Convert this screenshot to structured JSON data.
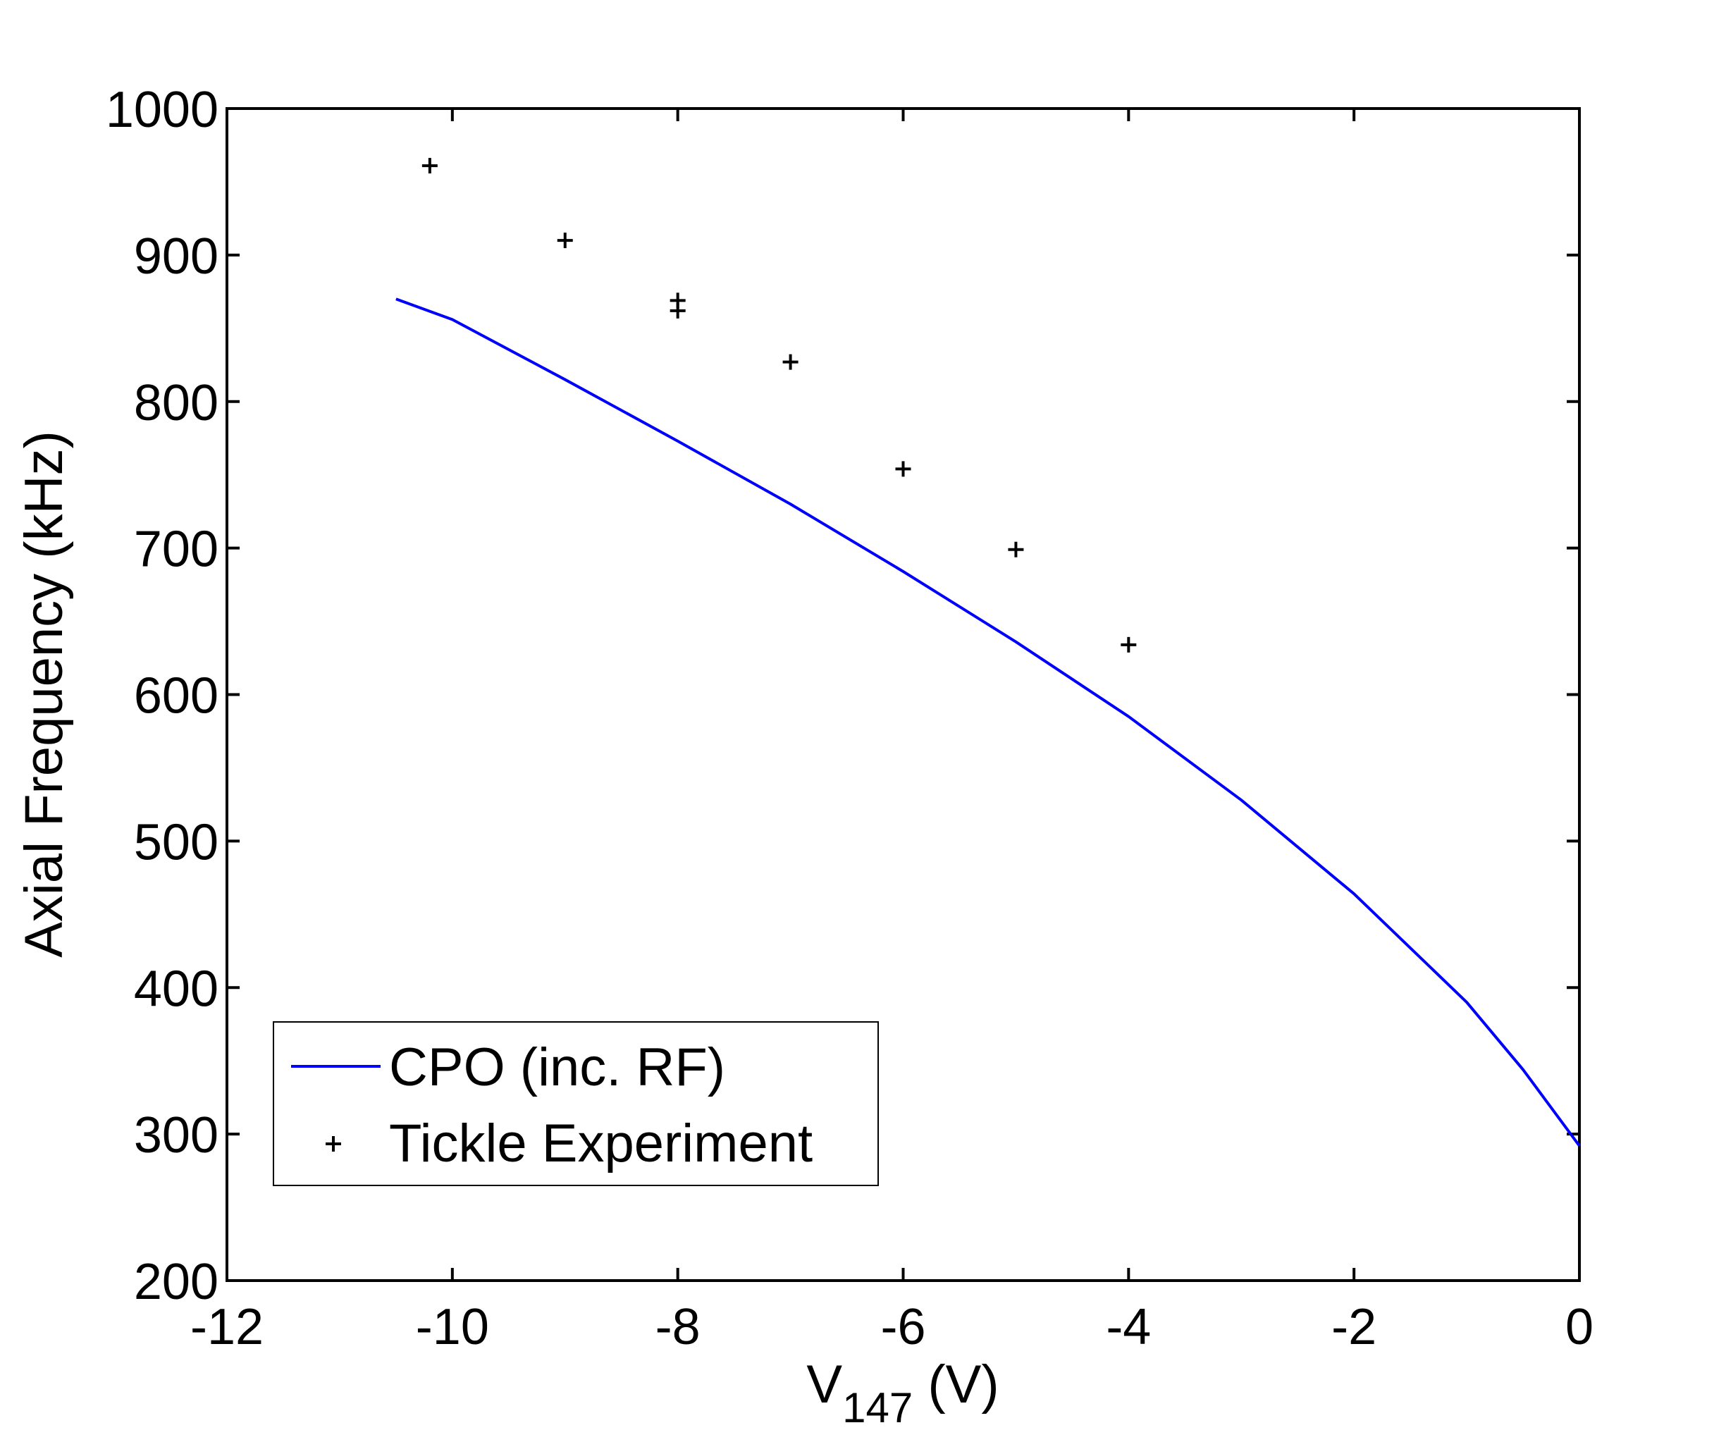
{
  "chart_data": {
    "type": "line",
    "xlabel": "V",
    "xlabel_sub": "147",
    "xlabel_unit": "(V)",
    "ylabel": "Axial Frequency (kHz)",
    "xlim": [
      -12,
      0
    ],
    "ylim": [
      200,
      1000
    ],
    "xticks": [
      -12,
      -10,
      -8,
      -6,
      -4,
      -2,
      0
    ],
    "yticks": [
      200,
      300,
      400,
      500,
      600,
      700,
      800,
      900,
      1000
    ],
    "legend_position": "bottom-left",
    "series": [
      {
        "name": "CPO (inc. RF)",
        "kind": "line",
        "color": "#0000ff",
        "x": [
          -10.5,
          -10,
          -9,
          -8,
          -7,
          -6,
          -5,
          -4,
          -3,
          -2,
          -1,
          -0.5,
          0
        ],
        "y": [
          870,
          856,
          815,
          773,
          730,
          684,
          636,
          585,
          528,
          464,
          390,
          344,
          292
        ]
      },
      {
        "name": "Tickle Experiment",
        "kind": "scatter",
        "marker": "+",
        "color": "#000000",
        "x": [
          -10.2,
          -9,
          -8,
          -8,
          -7,
          -6,
          -5,
          -4
        ],
        "y": [
          961,
          910,
          869,
          862,
          827,
          754,
          699,
          634
        ]
      }
    ]
  }
}
